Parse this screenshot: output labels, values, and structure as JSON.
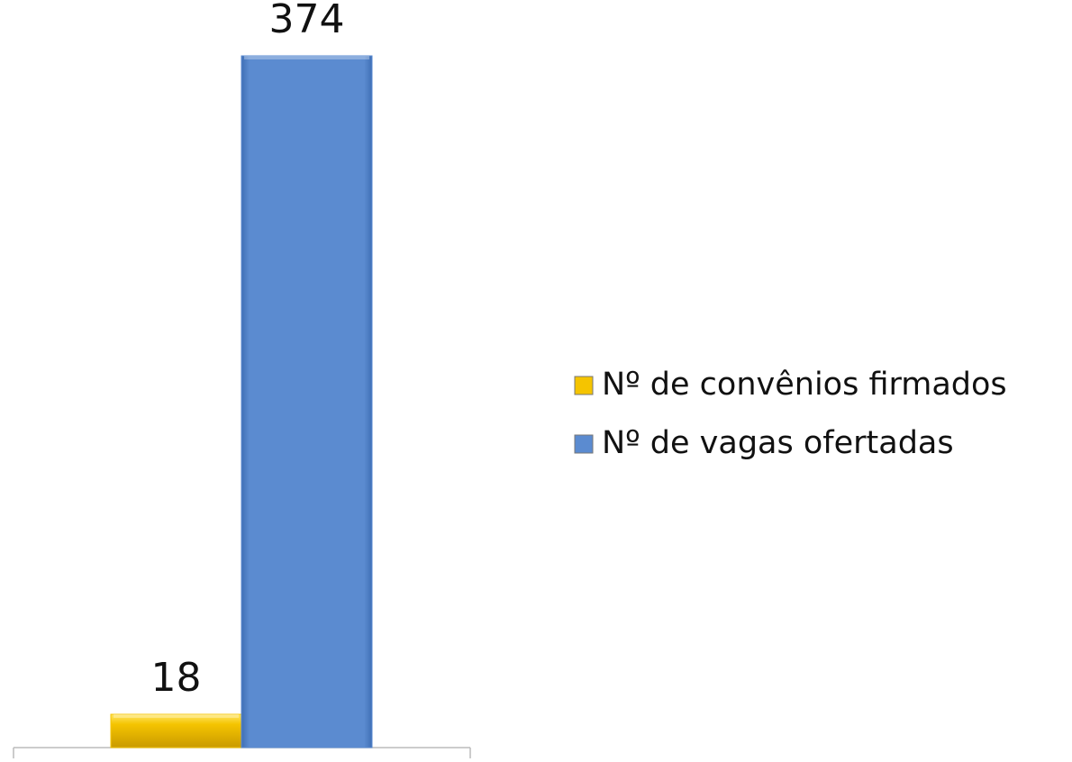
{
  "chart_data": {
    "type": "bar",
    "categories": [
      null
    ],
    "series": [
      {
        "name": "Nº de convênios firmados",
        "color": "#f5c400",
        "values": [
          18
        ]
      },
      {
        "name": "Nº de vagas ofertadas",
        "color": "#5b8bd0",
        "values": [
          374
        ]
      }
    ],
    "legend": "right"
  }
}
